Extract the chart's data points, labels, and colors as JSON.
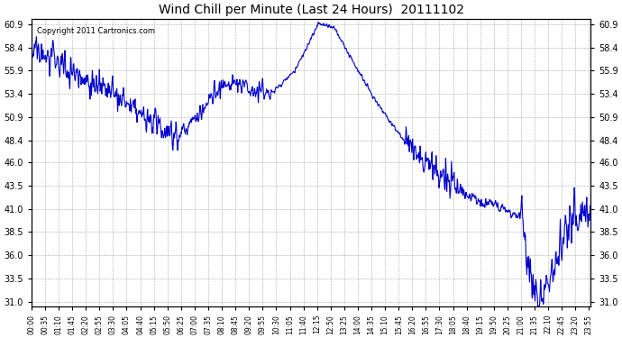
{
  "title": "Wind Chill per Minute (Last 24 Hours)  20111102",
  "copyright_text": "Copyright 2011 Cartronics.com",
  "line_color": "#0000cc",
  "bg_color": "#ffffff",
  "grid_color": "#aaaaaa",
  "yticks": [
    31.0,
    33.5,
    36.0,
    38.5,
    41.0,
    43.5,
    46.0,
    48.4,
    50.9,
    53.4,
    55.9,
    58.4,
    60.9
  ],
  "ylim": [
    30.5,
    61.5
  ],
  "xtick_labels": [
    "00:00",
    "00:35",
    "01:10",
    "01:45",
    "02:20",
    "02:55",
    "03:30",
    "04:05",
    "04:40",
    "05:15",
    "05:50",
    "06:25",
    "07:00",
    "07:35",
    "08:10",
    "08:45",
    "09:20",
    "09:55",
    "10:30",
    "11:05",
    "11:40",
    "12:15",
    "12:50",
    "13:25",
    "14:00",
    "14:35",
    "15:10",
    "15:45",
    "16:20",
    "16:55",
    "17:30",
    "18:05",
    "18:40",
    "19:15",
    "19:50",
    "20:25",
    "21:00",
    "21:35",
    "22:10",
    "22:45",
    "23:20",
    "23:55"
  ],
  "line_width": 0.8
}
